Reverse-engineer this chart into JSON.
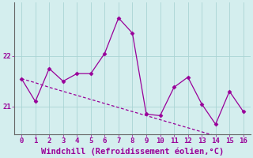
{
  "x": [
    0,
    1,
    2,
    3,
    4,
    5,
    6,
    7,
    8,
    9,
    10,
    11,
    12,
    13,
    14,
    15,
    16
  ],
  "y_main": [
    21.55,
    21.1,
    21.75,
    21.5,
    21.65,
    21.65,
    22.05,
    22.75,
    22.45,
    20.85,
    20.82,
    21.38,
    21.58,
    21.05,
    20.65,
    21.3,
    20.9
  ],
  "y_trend": [
    21.55,
    21.47,
    21.38,
    21.3,
    21.22,
    21.14,
    21.06,
    20.98,
    20.9,
    20.82,
    20.74,
    20.66,
    20.58,
    20.5,
    20.42,
    20.34,
    20.26
  ],
  "line_color": "#990099",
  "bg_color": "#d4eeee",
  "grid_color": "#aad4d4",
  "axis_color": "#666666",
  "xlabel": "Windchill (Refroidissement éolien,°C)",
  "xlabel_color": "#990099",
  "tick_color": "#990099",
  "ytick_labels": [
    "21",
    "22"
  ],
  "ytick_values": [
    21,
    22
  ],
  "xlim": [
    -0.5,
    16.5
  ],
  "ylim": [
    20.45,
    23.05
  ],
  "marker": "D",
  "markersize": 2.5,
  "linewidth": 0.9,
  "xlabel_fontsize": 7.5,
  "tick_fontsize": 6.5
}
